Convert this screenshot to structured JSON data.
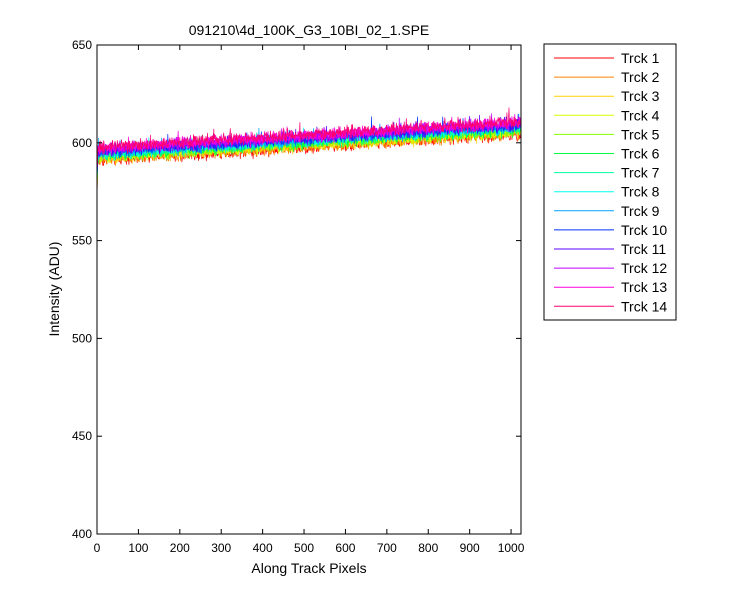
{
  "chart_data": {
    "type": "line",
    "title": "091210\\4d_100K_G3_10BI_02_1.SPE",
    "xlabel": "Along Track Pixels",
    "ylabel": "Intensity (ADU)",
    "xlim": [
      0,
      1024
    ],
    "ylim": [
      400,
      650
    ],
    "xticks": [
      0,
      100,
      200,
      300,
      400,
      500,
      600,
      700,
      800,
      900,
      1000
    ],
    "yticks": [
      400,
      450,
      500,
      550,
      600,
      650
    ],
    "grid": false,
    "legend_position": "outside-right",
    "series": [
      {
        "name": "Trck 1",
        "color": "#ff0000",
        "start": 591,
        "end": 604.5,
        "noise": 3.2
      },
      {
        "name": "Trck 2",
        "color": "#ff8000",
        "start": 591.5,
        "end": 605,
        "noise": 3.2
      },
      {
        "name": "Trck 3",
        "color": "#ffd000",
        "start": 592,
        "end": 605.5,
        "noise": 3.2
      },
      {
        "name": "Trck 4",
        "color": "#d8ff00",
        "start": 592.5,
        "end": 606,
        "noise": 3.2
      },
      {
        "name": "Trck 5",
        "color": "#80ff00",
        "start": 593,
        "end": 606.5,
        "noise": 3.2
      },
      {
        "name": "Trck 6",
        "color": "#00ff40",
        "start": 593.5,
        "end": 607,
        "noise": 3.2
      },
      {
        "name": "Trck 7",
        "color": "#00ff9f",
        "start": 594,
        "end": 607.5,
        "noise": 3.2
      },
      {
        "name": "Trck 8",
        "color": "#00ffee",
        "start": 594.5,
        "end": 608,
        "noise": 3.2
      },
      {
        "name": "Trck 9",
        "color": "#00a2ff",
        "start": 595,
        "end": 608.5,
        "noise": 3.2
      },
      {
        "name": "Trck 10",
        "color": "#0033ff",
        "start": 595.5,
        "end": 609,
        "noise": 3.2
      },
      {
        "name": "Trck 11",
        "color": "#5a00ff",
        "start": 596,
        "end": 609.5,
        "noise": 3.2
      },
      {
        "name": "Trck 12",
        "color": "#bf00ff",
        "start": 596.5,
        "end": 610,
        "noise": 3.2
      },
      {
        "name": "Trck 13",
        "color": "#ff00d9",
        "start": 597,
        "end": 610.5,
        "noise": 3.2
      },
      {
        "name": "Trck 14",
        "color": "#ff0070",
        "start": 597.5,
        "end": 611,
        "noise": 3.2
      }
    ]
  }
}
